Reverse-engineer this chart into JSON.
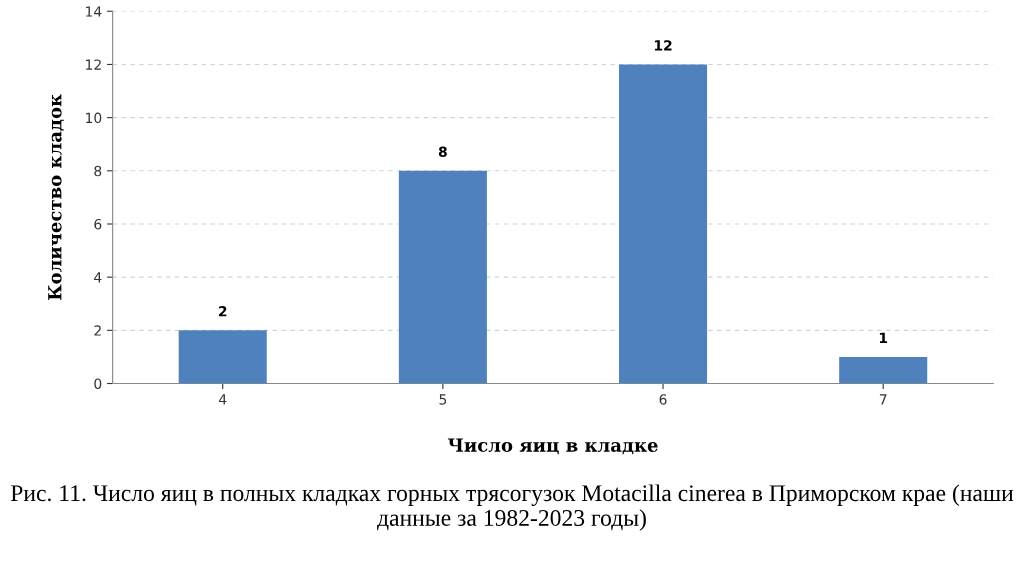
{
  "chart_data": {
    "type": "bar",
    "xlabel": "Число яиц в кладке",
    "ylabel": "Количество кладок",
    "categories": [
      "4",
      "5",
      "6",
      "7"
    ],
    "values": [
      2,
      8,
      12,
      1
    ],
    "color": "#4f81bd",
    "ylim": [
      0,
      14
    ],
    "yticks": [
      0,
      2,
      4,
      6,
      8,
      10,
      12,
      14
    ],
    "grid": "y",
    "data_labels": true,
    "annotations": [
      "Рис. 11. Число яиц в полных кладках горных трясогузок Motacilla cinerea в Приморском крае (наши данные за 1982-2023 годы)"
    ]
  }
}
